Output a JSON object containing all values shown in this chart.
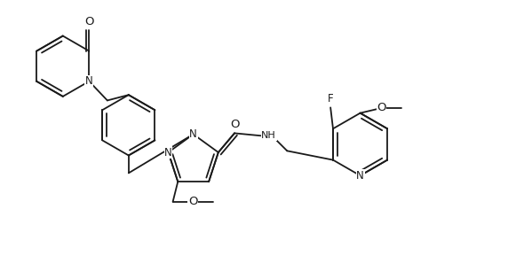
{
  "background_color": "#ffffff",
  "line_color": "#1a1a1a",
  "line_width": 1.3,
  "font_size": 8.0,
  "fig_width": 5.72,
  "fig_height": 3.06,
  "dpi": 100,
  "xlim": [
    0,
    10
  ],
  "ylim": [
    0,
    5.35
  ]
}
